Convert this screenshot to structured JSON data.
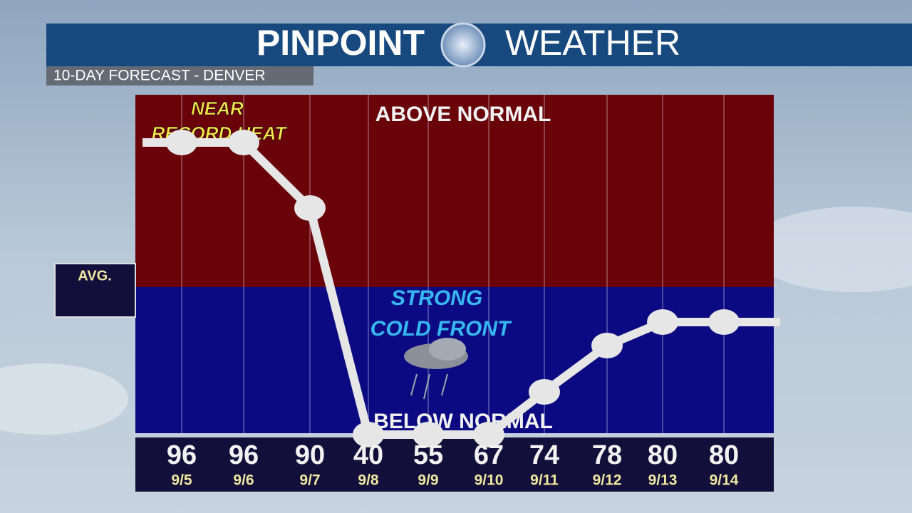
{
  "header": {
    "brand_left": "PINPOINT",
    "brand_right": "WEATHER",
    "subtitle": "10-DAY FORECAST - DENVER"
  },
  "zones": {
    "above": "ABOVE NORMAL",
    "below": "BELOW NORMAL",
    "avg": "AVG."
  },
  "annotations": {
    "heat": [
      "NEAR",
      "RECORD HEAT"
    ],
    "front": [
      "STRONG",
      "COLD FRONT"
    ]
  },
  "days": [
    {
      "temp": 96,
      "date": "9/5"
    },
    {
      "temp": 96,
      "date": "9/6"
    },
    {
      "temp": 90,
      "date": "9/7"
    },
    {
      "temp": 40,
      "date": "9/8"
    },
    {
      "temp": 55,
      "date": "9/9"
    },
    {
      "temp": 67,
      "date": "9/10"
    },
    {
      "temp": 74,
      "date": "9/11"
    },
    {
      "temp": 78,
      "date": "9/12"
    },
    {
      "temp": 80,
      "date": "9/13"
    },
    {
      "temp": 80,
      "date": "9/14"
    }
  ]
}
